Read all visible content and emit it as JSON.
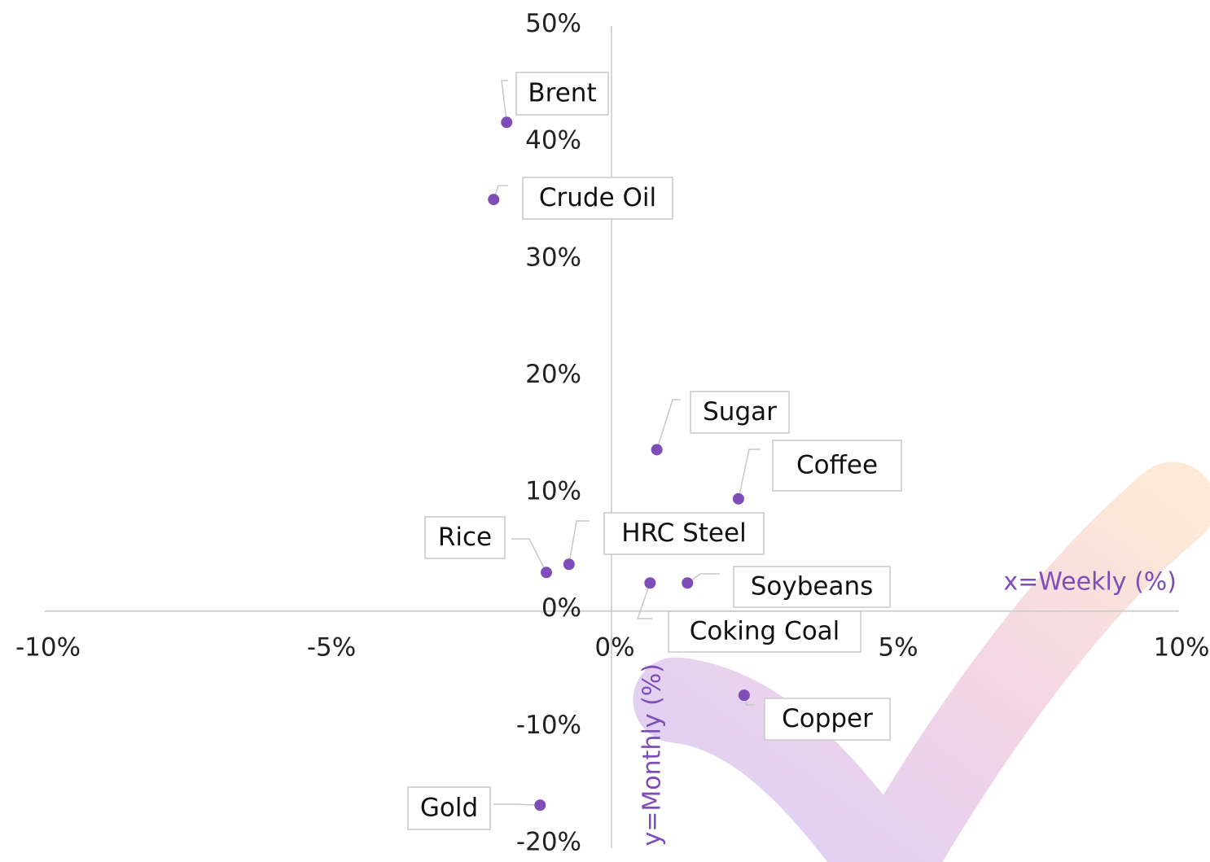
{
  "chart_data": {
    "type": "scatter",
    "xlabel": "x=Weekly (%)",
    "ylabel": "y=Monthly (%)",
    "color": "#7e4db8",
    "labels": [
      "Brent",
      "Crude Oil",
      "Sugar",
      "Coffee",
      "HRC Steel",
      "Rice",
      "Soybeans",
      "Coking Coal",
      "Copper",
      "Gold"
    ],
    "x": [
      -1.85,
      -2.08,
      0.8,
      2.24,
      -0.75,
      -1.15,
      1.34,
      0.68,
      2.34,
      -1.26
    ],
    "y": [
      41.8,
      35.2,
      13.8,
      9.6,
      4.0,
      3.3,
      2.4,
      2.4,
      -7.2,
      -16.6
    ],
    "xlim": [
      -10,
      10
    ],
    "ylim": [
      -20,
      50
    ],
    "xticks": [
      {
        "value": -10,
        "label": "-10%"
      },
      {
        "value": -5,
        "label": "-5%"
      },
      {
        "value": 0,
        "label": "0%"
      },
      {
        "value": 5,
        "label": "5%"
      },
      {
        "value": 10,
        "label": "10%"
      }
    ],
    "yticks": [
      {
        "value": -20,
        "label": "-20%"
      },
      {
        "value": -10,
        "label": "-10%"
      },
      {
        "value": 0,
        "label": "0%"
      },
      {
        "value": 10,
        "label": "10%"
      },
      {
        "value": 20,
        "label": "20%"
      },
      {
        "value": 30,
        "label": "30%"
      },
      {
        "value": 40,
        "label": "40%"
      },
      {
        "value": 50,
        "label": "50%"
      }
    ]
  }
}
